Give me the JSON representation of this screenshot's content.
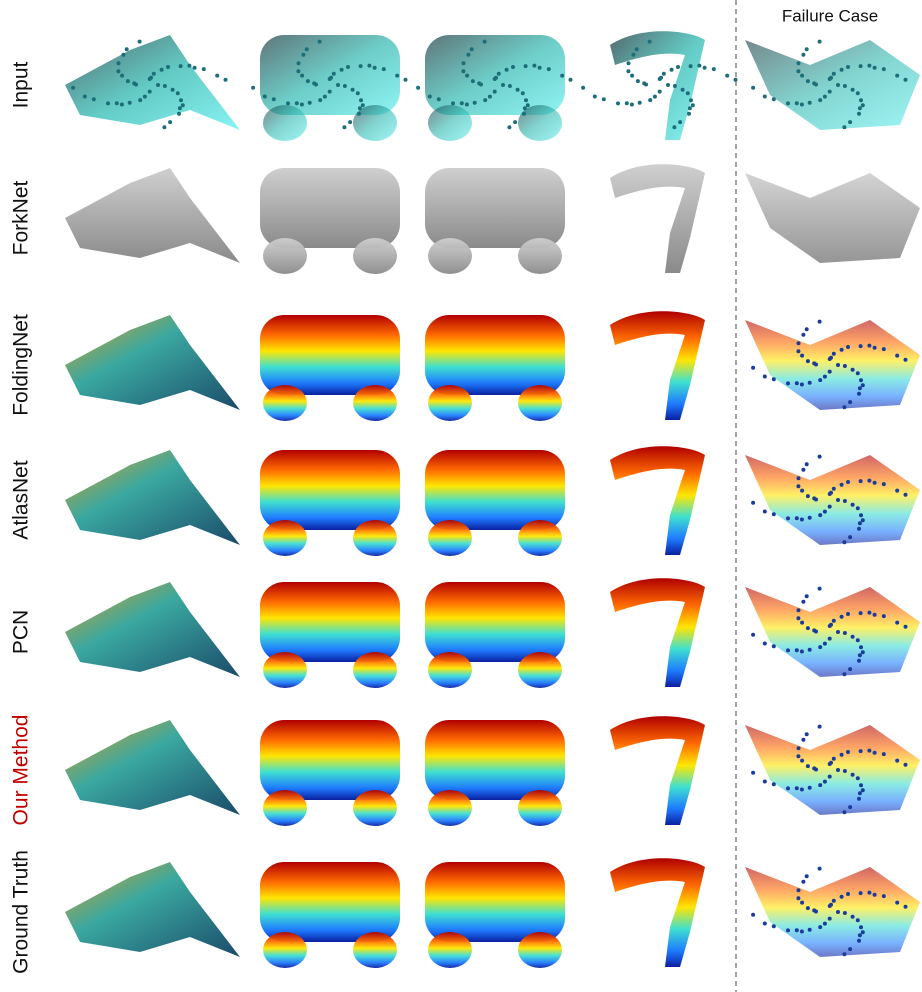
{
  "header": {
    "failure_case": "Failure Case"
  },
  "rows": [
    {
      "label": "Input"
    },
    {
      "label": "ForkNet"
    },
    {
      "label": "FoldingNet"
    },
    {
      "label": "AtlasNet"
    },
    {
      "label": "PCN"
    },
    {
      "label": "Our Method"
    },
    {
      "label": "Ground Truth"
    }
  ]
}
